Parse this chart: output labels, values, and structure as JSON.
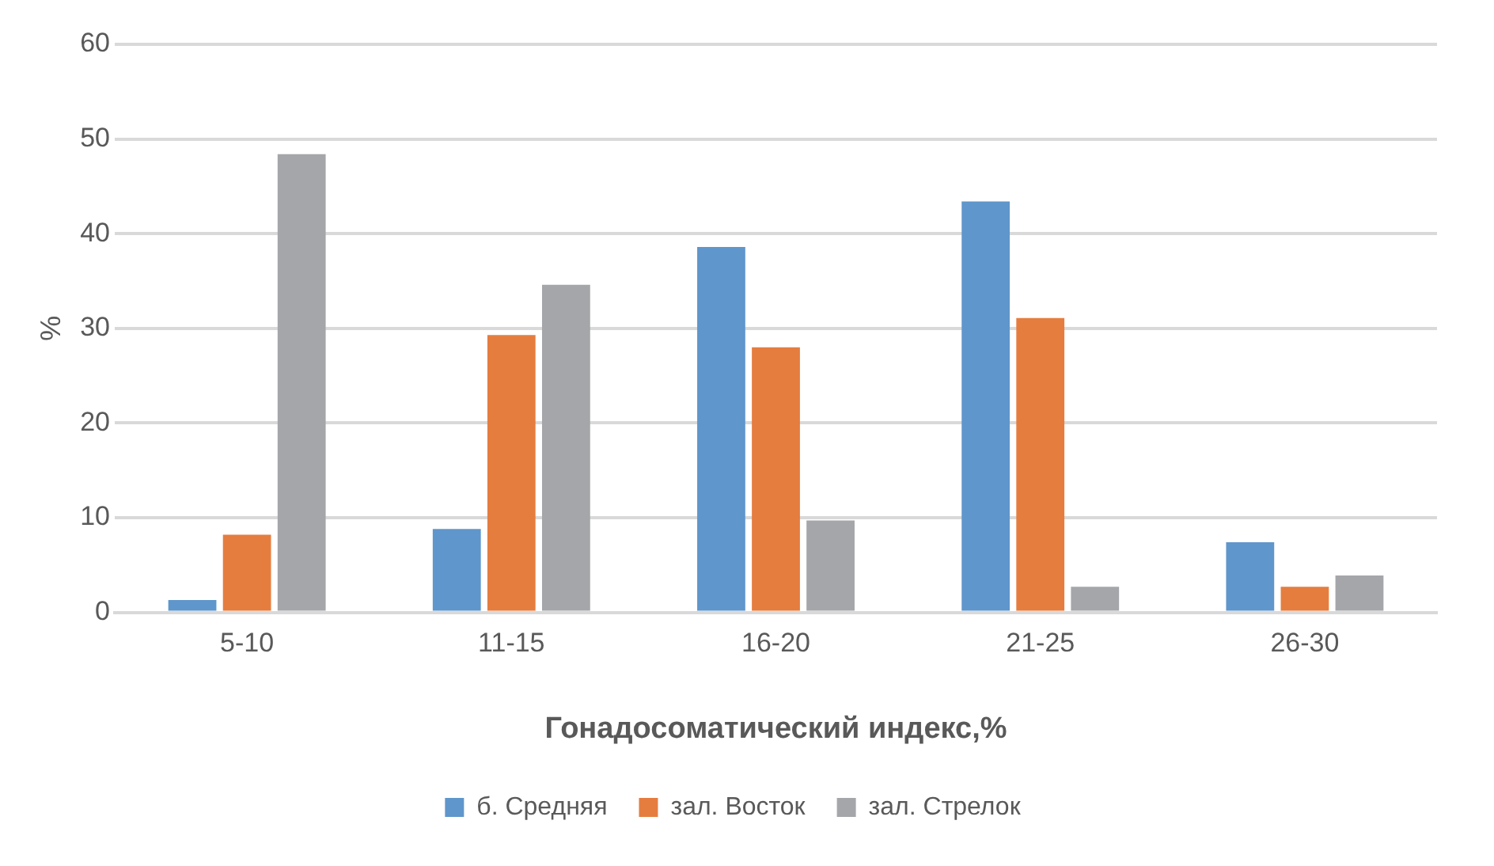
{
  "chart_data": {
    "type": "bar",
    "xlabel": "Гонадосоматический индекс,%",
    "ylabel": "%",
    "categories": [
      "5-10",
      "11-15",
      "16-20",
      "21-25",
      "26-30"
    ],
    "series": [
      {
        "name": "б. Средняя",
        "color": "#5f96cb",
        "values": [
          1.3,
          8.8,
          38.6,
          43.4,
          7.4
        ]
      },
      {
        "name": "зал. Восток",
        "color": "#e57d3f",
        "values": [
          8.2,
          29.3,
          28.0,
          31.1,
          2.7
        ]
      },
      {
        "name": "зал. Стрелок",
        "color": "#a5a6a9",
        "values": [
          48.4,
          34.6,
          9.7,
          2.7,
          3.9
        ]
      }
    ],
    "ylim": [
      0,
      60
    ],
    "yticks": [
      0,
      10,
      20,
      30,
      40,
      50,
      60
    ],
    "grid": "y",
    "legend": "bottom"
  }
}
